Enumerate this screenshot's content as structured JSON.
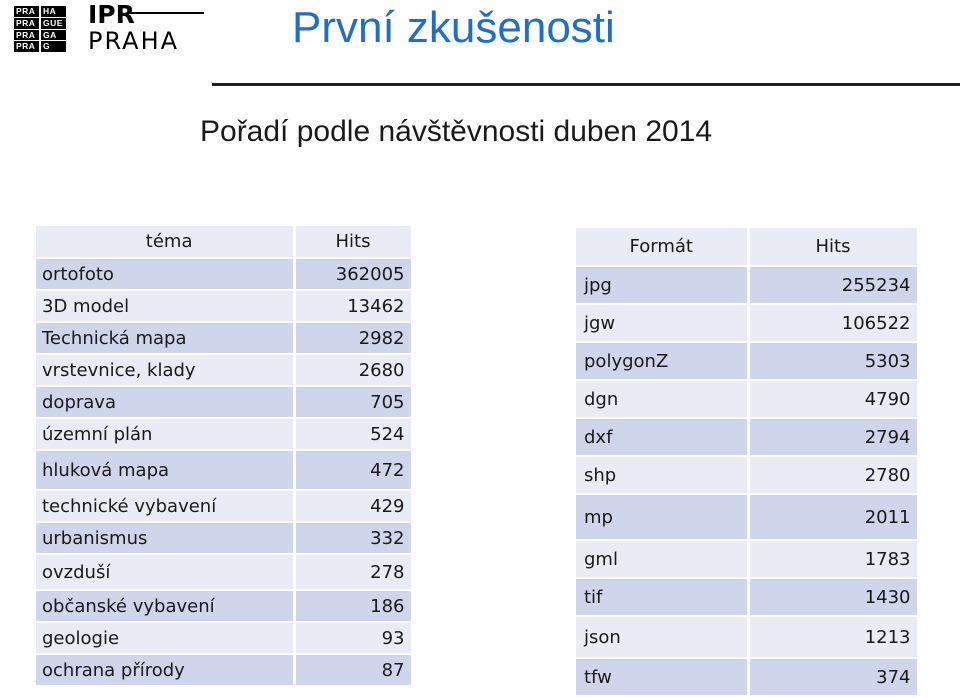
{
  "logo": {
    "grid": [
      "PRA",
      "HA",
      "PRA",
      "GUE",
      "PRA",
      "GA",
      "PRA",
      "G"
    ],
    "ipr": "IPR",
    "praha": "PRAHA"
  },
  "header": {
    "title": "První zkušenosti"
  },
  "subtitle": "Pořadí podle návštěvnosti duben 2014",
  "colors": {
    "title": "#1f6fc6",
    "row_light": "#e9ebf5",
    "row_dark": "#cfd5ea"
  },
  "topic_table": {
    "columns": [
      "téma",
      "Hits"
    ],
    "rows": [
      {
        "label": "ortofoto",
        "hits": "362005"
      },
      {
        "label": "3D model",
        "hits": "13462"
      },
      {
        "label": "Technická mapa",
        "hits": "2982"
      },
      {
        "label": "vrstevnice, klady",
        "hits": "2680"
      },
      {
        "label": "doprava",
        "hits": "705"
      },
      {
        "label": "územní plán",
        "hits": "524"
      },
      {
        "label": "hluková mapa",
        "hits": "472"
      },
      {
        "label": "technické vybavení",
        "hits": "429"
      },
      {
        "label": "urbanismus",
        "hits": "332"
      },
      {
        "label": "ovzduší",
        "hits": "278"
      },
      {
        "label": "občanské vybavení",
        "hits": "186"
      },
      {
        "label": "geologie",
        "hits": "93"
      },
      {
        "label": "ochrana přírody",
        "hits": "87"
      }
    ]
  },
  "format_table": {
    "columns": [
      "Formát",
      "Hits"
    ],
    "rows": [
      {
        "label": "jpg",
        "hits": "255234"
      },
      {
        "label": "jgw",
        "hits": "106522"
      },
      {
        "label": "polygonZ",
        "hits": "5303"
      },
      {
        "label": "dgn",
        "hits": "4790"
      },
      {
        "label": "dxf",
        "hits": "2794"
      },
      {
        "label": "shp",
        "hits": "2780"
      },
      {
        "label": "mp",
        "hits": "2011"
      },
      {
        "label": "gml",
        "hits": "1783"
      },
      {
        "label": "tif",
        "hits": "1430"
      },
      {
        "label": "json",
        "hits": "1213"
      },
      {
        "label": "tfw",
        "hits": "374"
      }
    ]
  }
}
